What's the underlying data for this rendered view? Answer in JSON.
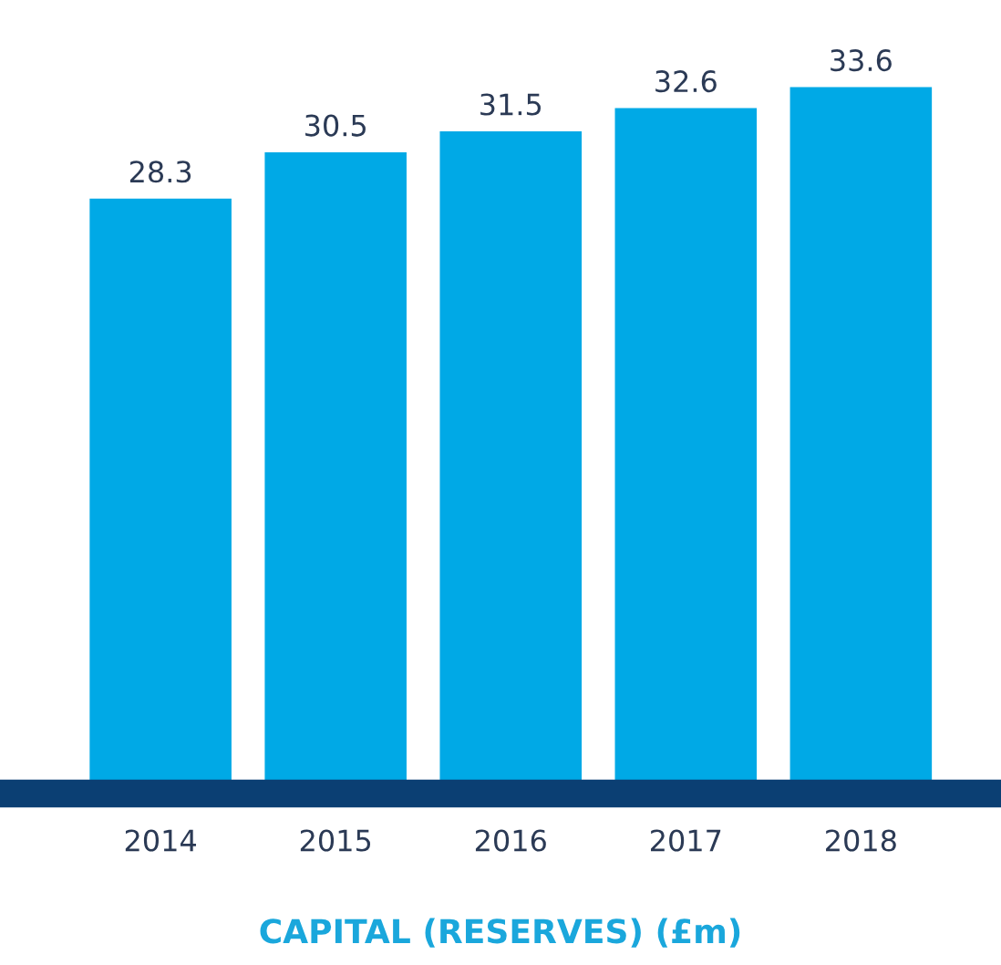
{
  "chart_data": {
    "type": "bar",
    "title": "CAPITAL (RESERVES) (£m)",
    "categories": [
      "2014",
      "2015",
      "2016",
      "2017",
      "2018"
    ],
    "values": [
      28.3,
      30.5,
      31.5,
      32.6,
      33.6
    ],
    "color": "#00a9e6",
    "data_labels": true,
    "grid": false,
    "legend": false
  }
}
